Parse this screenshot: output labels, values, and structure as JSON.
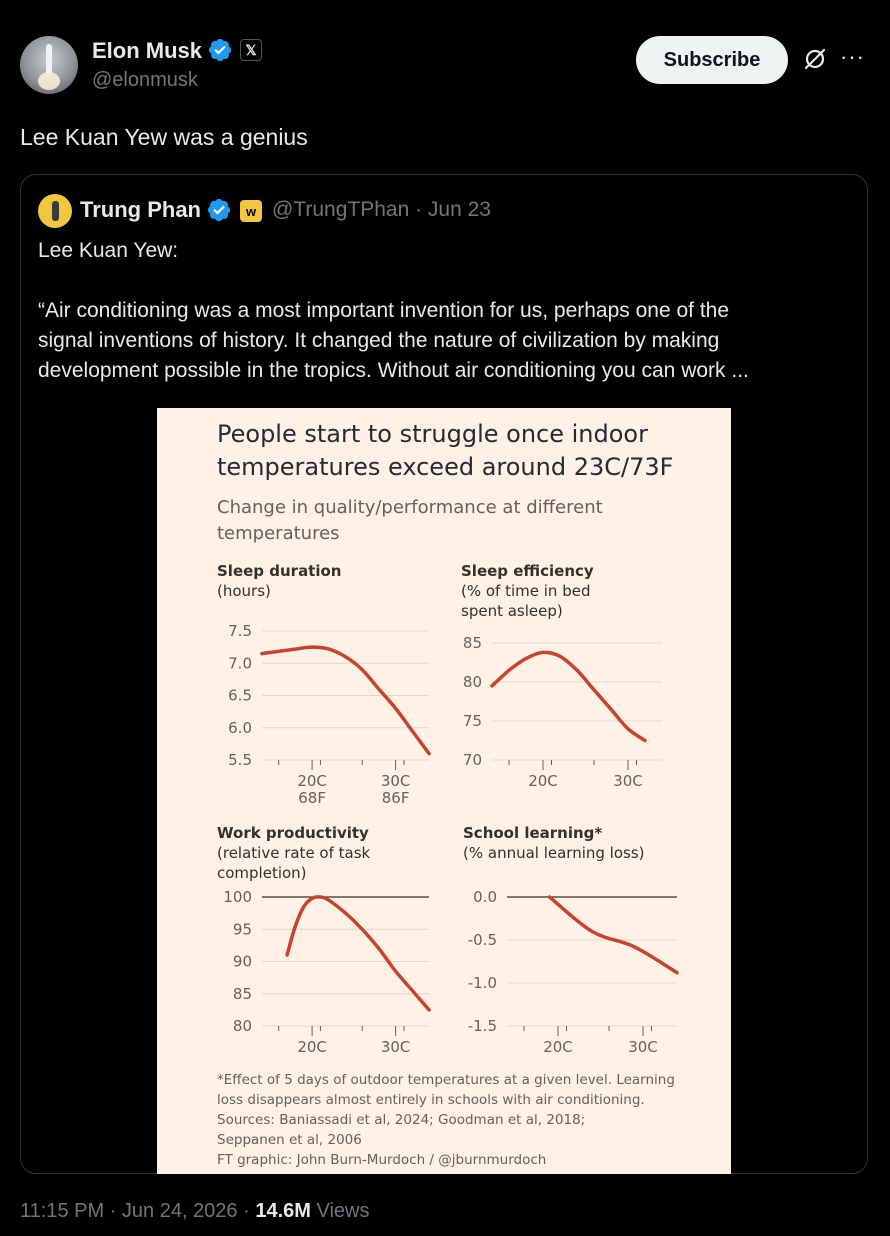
{
  "author": {
    "name": "Elon Musk",
    "handle": "@elonmusk",
    "org_badge": "𝕏"
  },
  "header": {
    "subscribe_label": "Subscribe",
    "more_label": "···"
  },
  "tweet": {
    "text": "Lee Kuan Yew was a genius"
  },
  "quoted": {
    "name": "Trung Phan",
    "badge": "w",
    "handle_date": "@TrungTPhan · Jun 23",
    "line1": "Lee Kuan Yew:",
    "line2": "“Air conditioning was a most important invention for us, perhaps one of the",
    "line3": "signal inventions of history. It changed the nature of civilization by making",
    "line4": "development possible in the tropics. Without air conditioning you can work ..."
  },
  "figure": {
    "title1": "People start to struggle once indoor",
    "title2": "temperatures exceed around 23C/73F",
    "sub1": "Change in quality/performance at different",
    "sub2": "temperatures",
    "foot1": "*Effect of 5 days of outdoor temperatures at a given level. Learning",
    "foot2": "loss disappears almost entirely in schools with air conditioning.",
    "foot3": "Sources: Baniassadi et al, 2024; Goodman et al, 2018;",
    "foot4": "Seppanen et al, 2006",
    "foot5": "FT graphic: John Burn-Murdoch / @jburnmurdoch"
  },
  "chart_data": [
    {
      "type": "line",
      "title": "Sleep duration",
      "ylabel": "(hours)",
      "ylim": [
        5.5,
        7.5
      ],
      "yticks": [
        "7.5",
        "7.0",
        "6.5",
        "6.0",
        "5.5"
      ],
      "xticks": [
        "20C",
        "30C"
      ],
      "xticks_f": [
        "68F",
        "86F"
      ],
      "x": [
        14,
        18,
        20,
        22,
        24,
        26,
        28,
        30,
        32,
        34
      ],
      "y": [
        7.15,
        7.22,
        7.25,
        7.22,
        7.1,
        6.9,
        6.6,
        6.3,
        5.95,
        5.6
      ]
    },
    {
      "type": "line",
      "title": "Sleep efficiency",
      "ylabel1": "(% of time in bed",
      "ylabel2": "spent asleep)",
      "ylim": [
        70,
        85
      ],
      "yticks": [
        "85",
        "80",
        "75",
        "70"
      ],
      "xticks": [
        "20C",
        "30C"
      ],
      "x": [
        14,
        16,
        18,
        20,
        22,
        24,
        26,
        28,
        30,
        32
      ],
      "y": [
        79.5,
        81.5,
        83,
        83.8,
        83.3,
        81.5,
        79,
        76.5,
        74,
        72.5
      ]
    },
    {
      "type": "line",
      "title": "Work productivity",
      "ylabel1": "(relative rate of task",
      "ylabel2": "completion)",
      "ylim": [
        80,
        100
      ],
      "yticks": [
        "100",
        "95",
        "90",
        "85",
        "80"
      ],
      "xticks": [
        "20C",
        "30C"
      ],
      "x": [
        17,
        18,
        19,
        20,
        21,
        22,
        24,
        26,
        28,
        30,
        32,
        34
      ],
      "y": [
        91,
        95.5,
        98.5,
        99.8,
        100,
        99.5,
        97.5,
        95,
        92,
        88.5,
        85.5,
        82.5
      ]
    },
    {
      "type": "line",
      "title": "School learning*",
      "ylabel": "(% annual learning loss)",
      "ylim": [
        -1.5,
        0.0
      ],
      "yticks": [
        "0.0",
        "-0.5",
        "-1.0",
        "-1.5"
      ],
      "xticks": [
        "20C",
        "30C"
      ],
      "x": [
        19,
        24,
        29,
        34
      ],
      "y": [
        0.0,
        -0.4,
        -0.58,
        -0.88
      ]
    }
  ],
  "footer": {
    "timestamp": "11:15 PM · Jun 24, 2026 · ",
    "views_count": "14.6M",
    "views_label": " Views"
  }
}
